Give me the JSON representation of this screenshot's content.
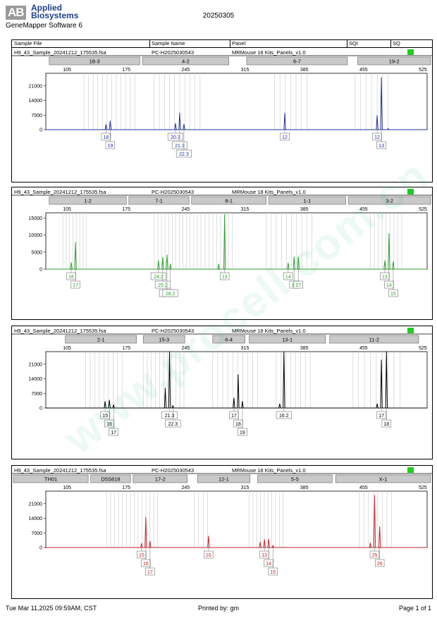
{
  "brand": {
    "mark": "AB",
    "line1": "Applied",
    "line2": "Biosystems",
    "software": "GeneMapper Software 6"
  },
  "report_date": "20250305",
  "table_header": {
    "sample_file": "Sample File",
    "sample_name": "Sample Name",
    "panel": "Panel",
    "sqi": "SQI",
    "sq": "SQ"
  },
  "watermark": "www.procell.com.cn",
  "footer": {
    "timestamp": "Tue Mar 11,2025 09:59AM, CST",
    "printed_by": "Printed by: gm",
    "page": "Page 1 of 1"
  },
  "colors": {
    "blue": "#1f2fa3",
    "green": "#2ca02c",
    "black": "#000000",
    "red": "#c8232a",
    "sq_ok": "#22cc22",
    "bin_line": "#c8c8c8",
    "marker_box": "#c9c9c9"
  },
  "chart_data": [
    {
      "type": "line",
      "dye": "blue",
      "sample_file": "H9_43_Sample_20241212_175535.fsa",
      "sample_name": "PC-H2025030543",
      "panel": "MRMouse 18 Kits_Panels_v1.0",
      "xlim": [
        80,
        530
      ],
      "x_ticks": [
        105,
        175,
        245,
        315,
        385,
        455,
        525
      ],
      "ylim": [
        0,
        27000
      ],
      "y_ticks": [
        0,
        7000,
        14000,
        21000
      ],
      "markers": [
        {
          "name": "18-3",
          "start": 84,
          "end": 191
        },
        {
          "name": "4-2",
          "start": 194,
          "end": 296
        },
        {
          "name": "6-7",
          "start": 317,
          "end": 436
        },
        {
          "name": "19-2",
          "start": 448,
          "end": 556
        }
      ],
      "bins": [
        [
          125,
          185,
          12
        ],
        [
          208,
          262,
          10
        ],
        [
          350,
          388,
          7
        ],
        [
          445,
          484,
          7
        ]
      ],
      "peaks": [
        {
          "x": 151,
          "y": 2500
        },
        {
          "x": 156,
          "y": 4200
        },
        {
          "x": 233,
          "y": 3000
        },
        {
          "x": 238,
          "y": 8000
        },
        {
          "x": 243,
          "y": 2600
        },
        {
          "x": 362,
          "y": 7800
        },
        {
          "x": 471,
          "y": 6800
        },
        {
          "x": 476,
          "y": 25000
        },
        {
          "x": 484,
          "y": 600
        }
      ],
      "alleles": [
        {
          "x": 151,
          "label": "18"
        },
        {
          "x": 156,
          "label": "19"
        },
        {
          "x": 233,
          "label": "20.3"
        },
        {
          "x": 238,
          "label": "21.3"
        },
        {
          "x": 243,
          "label": "22.3"
        },
        {
          "x": 362,
          "label": "12"
        },
        {
          "x": 471,
          "label": "12"
        },
        {
          "x": 476,
          "label": "13"
        }
      ]
    },
    {
      "type": "line",
      "dye": "green",
      "sample_file": "H9_43_Sample_20241212_175535.fsa",
      "sample_name": "PC-H2025030543",
      "panel": "MRMouse 18 Kits_Panels_v1.0",
      "xlim": [
        80,
        530
      ],
      "x_ticks": [
        105,
        175,
        245,
        315,
        385,
        455,
        525
      ],
      "ylim": [
        0,
        16500
      ],
      "y_ticks": [
        0,
        5000,
        10000,
        15000
      ],
      "markers": [
        {
          "name": "1-2",
          "start": 84,
          "end": 175
        },
        {
          "name": "7-1",
          "start": 178,
          "end": 249
        },
        {
          "name": "8-1",
          "start": 252,
          "end": 340
        },
        {
          "name": "1-1",
          "start": 343,
          "end": 434
        },
        {
          "name": "3-2",
          "start": 437,
          "end": 563
        }
      ],
      "bins": [
        [
          100,
          128,
          8
        ],
        [
          208,
          263,
          14
        ],
        [
          268,
          300,
          8
        ],
        [
          340,
          394,
          10
        ],
        [
          463,
          500,
          9
        ]
      ],
      "peaks": [
        {
          "x": 110,
          "y": 2000
        },
        {
          "x": 115,
          "y": 7800
        },
        {
          "x": 213,
          "y": 2500
        },
        {
          "x": 218,
          "y": 3500
        },
        {
          "x": 223,
          "y": 4200
        },
        {
          "x": 227,
          "y": 1500
        },
        {
          "x": 291,
          "y": 16000
        },
        {
          "x": 284,
          "y": 1500
        },
        {
          "x": 366,
          "y": 1800
        },
        {
          "x": 373,
          "y": 3600
        },
        {
          "x": 378,
          "y": 3600
        },
        {
          "x": 480,
          "y": 2500
        },
        {
          "x": 485,
          "y": 10500
        },
        {
          "x": 490,
          "y": 2200
        }
      ],
      "alleles": [
        {
          "x": 110,
          "label": "16"
        },
        {
          "x": 115,
          "label": "17"
        },
        {
          "x": 213,
          "label": "24.2"
        },
        {
          "x": 218,
          "label": "25.2"
        },
        {
          "x": 223,
          "label": "26.2"
        },
        {
          "x": 227,
          "label": "28.2"
        },
        {
          "x": 291,
          "label": "13"
        },
        {
          "x": 366,
          "label": "14"
        },
        {
          "x": 373,
          "label": "16"
        },
        {
          "x": 378,
          "label": "17"
        },
        {
          "x": 480,
          "label": "13"
        },
        {
          "x": 485,
          "label": "14"
        },
        {
          "x": 490,
          "label": "15"
        }
      ]
    },
    {
      "type": "line",
      "dye": "black",
      "sample_file": "H9_43_Sample_20241212_175535.fsa",
      "sample_name": "PC-H2025030543",
      "panel": "MRMouse 18 Kits_Panels_v1.0",
      "xlim": [
        80,
        530
      ],
      "x_ticks": [
        105,
        175,
        245,
        315,
        385,
        455,
        525
      ],
      "ylim": [
        0,
        27000
      ],
      "y_ticks": [
        0,
        7000,
        14000,
        21000
      ],
      "markers": [
        {
          "name": "2-1",
          "start": 103,
          "end": 187
        },
        {
          "name": "15-3",
          "start": 195,
          "end": 244
        },
        {
          "name": "6-4",
          "start": 277,
          "end": 315
        },
        {
          "name": "13-1",
          "start": 320,
          "end": 410
        },
        {
          "name": "11-2",
          "start": 415,
          "end": 520
        }
      ],
      "bins": [
        [
          127,
          170,
          9
        ],
        [
          195,
          243,
          11
        ],
        [
          277,
          330,
          10
        ],
        [
          352,
          392,
          8
        ],
        [
          442,
          498,
          9
        ]
      ],
      "peaks": [
        {
          "x": 150,
          "y": 3200
        },
        {
          "x": 155,
          "y": 3800
        },
        {
          "x": 160,
          "y": 1500
        },
        {
          "x": 221,
          "y": 9500
        },
        {
          "x": 226,
          "y": 27000
        },
        {
          "x": 230,
          "y": 1200
        },
        {
          "x": 302,
          "y": 4800
        },
        {
          "x": 307,
          "y": 16000
        },
        {
          "x": 312,
          "y": 3200
        },
        {
          "x": 356,
          "y": 2000
        },
        {
          "x": 361,
          "y": 27000
        },
        {
          "x": 471,
          "y": 2000
        },
        {
          "x": 476,
          "y": 23000
        },
        {
          "x": 482,
          "y": 27000
        }
      ],
      "alleles": [
        {
          "x": 150,
          "label": "15"
        },
        {
          "x": 155,
          "label": "16"
        },
        {
          "x": 160,
          "label": "17"
        },
        {
          "x": 226,
          "label": "21.3"
        },
        {
          "x": 230,
          "label": "22.3"
        },
        {
          "x": 302,
          "label": "17"
        },
        {
          "x": 307,
          "label": "18"
        },
        {
          "x": 312,
          "label": "19"
        },
        {
          "x": 361,
          "label": "16.2"
        },
        {
          "x": 476,
          "label": "17"
        },
        {
          "x": 482,
          "label": "18"
        }
      ]
    },
    {
      "type": "line",
      "dye": "red",
      "sample_file": "H9_43_Sample_20241212_175535.fsa",
      "sample_name": "PC-H2025030543",
      "panel": "MRMouse 18 Kits_Panels_v1.0",
      "xlim": [
        80,
        530
      ],
      "x_ticks": [
        105,
        175,
        245,
        315,
        385,
        455,
        525
      ],
      "ylim": [
        0,
        27000
      ],
      "y_ticks": [
        0,
        7000,
        14000,
        21000
      ],
      "markers": [
        {
          "name": "TH01",
          "start": 40,
          "end": 130
        },
        {
          "name": "D5S818",
          "start": 133,
          "end": 180
        },
        {
          "name": "17-2",
          "start": 183,
          "end": 247
        },
        {
          "name": "12-1",
          "start": 259,
          "end": 321
        },
        {
          "name": "5-5",
          "start": 330,
          "end": 418
        },
        {
          "name": "X-1",
          "start": 422,
          "end": 542
        }
      ],
      "bins": [
        [
          152,
          212,
          14
        ],
        [
          255,
          271,
          4
        ],
        [
          320,
          360,
          10
        ],
        [
          450,
          488,
          8
        ]
      ],
      "peaks": [
        {
          "x": 193,
          "y": 2000
        },
        {
          "x": 198,
          "y": 14500
        },
        {
          "x": 203,
          "y": 3000
        },
        {
          "x": 272,
          "y": 5500
        },
        {
          "x": 333,
          "y": 2600
        },
        {
          "x": 338,
          "y": 3800
        },
        {
          "x": 343,
          "y": 4000
        },
        {
          "x": 348,
          "y": 1000
        },
        {
          "x": 463,
          "y": 2200
        },
        {
          "x": 468,
          "y": 25000
        },
        {
          "x": 474,
          "y": 10000
        }
      ],
      "alleles": [
        {
          "x": 193,
          "label": "15"
        },
        {
          "x": 198,
          "label": "16"
        },
        {
          "x": 203,
          "label": "17"
        },
        {
          "x": 272,
          "label": "16"
        },
        {
          "x": 338,
          "label": "13"
        },
        {
          "x": 343,
          "label": "14"
        },
        {
          "x": 348,
          "label": "15"
        },
        {
          "x": 468,
          "label": "25"
        },
        {
          "x": 474,
          "label": "26"
        }
      ]
    }
  ]
}
